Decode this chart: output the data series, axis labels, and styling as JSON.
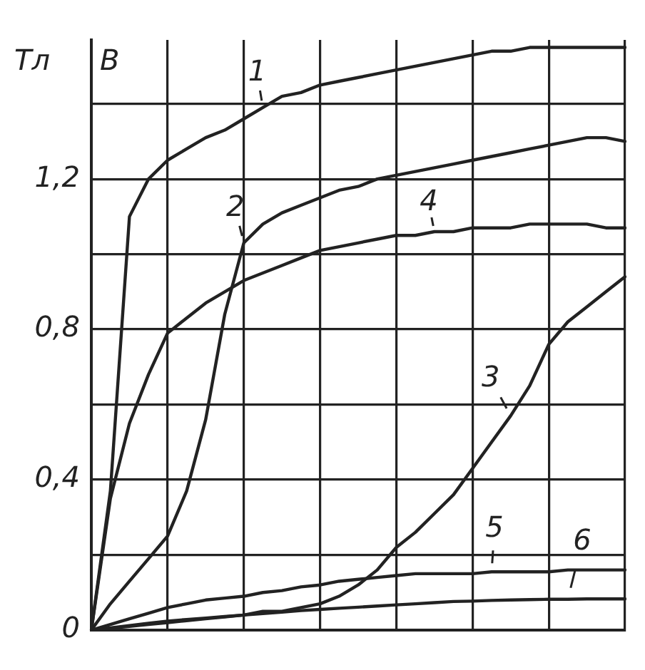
{
  "chart_data": {
    "type": "line",
    "ylabel": "Тл",
    "annotations": [
      "B"
    ],
    "categories": [
      null,
      null,
      null,
      null,
      null,
      null,
      null,
      null,
      null,
      null,
      null,
      null,
      null,
      null,
      null,
      null,
      null,
      null,
      null,
      null,
      null,
      null,
      null,
      null,
      null,
      null,
      null,
      null,
      null
    ],
    "ylim": [
      0,
      1.57
    ],
    "yticks": [
      {
        "value": 0,
        "label": "0"
      },
      {
        "value": 0.2,
        "label": null
      },
      {
        "value": 0.4,
        "label": "0,4"
      },
      {
        "value": 0.6,
        "label": null
      },
      {
        "value": 0.8,
        "label": "0,8"
      },
      {
        "value": 1,
        "label": null
      },
      {
        "value": 1.2,
        "label": "1,2"
      },
      {
        "value": 1.4,
        "label": null
      }
    ],
    "tick_labels": "y",
    "grid": true,
    "legend": false,
    "marker": "none",
    "line_style": "solid",
    "series": [
      {
        "name": "1",
        "color": "#222222",
        "values": [
          0,
          0.37,
          1.1,
          1.2,
          1.25,
          1.28,
          1.31,
          1.33,
          1.36,
          1.39,
          1.42,
          1.43,
          1.45,
          1.46,
          1.47,
          1.48,
          1.49,
          1.5,
          1.51,
          1.52,
          1.53,
          1.54,
          1.54,
          1.55,
          1.55,
          1.55,
          1.55,
          1.55,
          1.55
        ]
      },
      {
        "name": "2",
        "color": "#222222",
        "values": [
          0,
          0.07,
          0.13,
          0.19,
          0.25,
          0.37,
          0.56,
          0.84,
          1.03,
          1.08,
          1.11,
          1.13,
          1.15,
          1.17,
          1.18,
          1.2,
          1.21,
          1.22,
          1.23,
          1.24,
          1.25,
          1.26,
          1.27,
          1.28,
          1.29,
          1.3,
          1.31,
          1.31,
          1.3
        ]
      },
      {
        "name": "3",
        "color": "#222222",
        "values": [
          0,
          0.005,
          0.01,
          0.015,
          0.02,
          0.025,
          0.03,
          0.035,
          0.04,
          0.05,
          0.05,
          0.06,
          0.07,
          0.09,
          0.12,
          0.16,
          0.22,
          0.26,
          0.31,
          0.36,
          0.43,
          0.5,
          0.57,
          0.65,
          0.76,
          0.82,
          0.86,
          0.9,
          0.94
        ]
      },
      {
        "name": "4",
        "color": "#222222",
        "values": [
          0,
          0.35,
          0.55,
          0.68,
          0.79,
          0.83,
          0.87,
          0.9,
          0.93,
          0.95,
          0.97,
          0.99,
          1.01,
          1.02,
          1.03,
          1.04,
          1.05,
          1.05,
          1.06,
          1.06,
          1.07,
          1.07,
          1.07,
          1.08,
          1.08,
          1.08,
          1.08,
          1.07,
          1.07
        ]
      },
      {
        "name": "5",
        "color": "#222222",
        "values": [
          0,
          0.015,
          0.03,
          0.045,
          0.06,
          0.07,
          0.08,
          0.085,
          0.09,
          0.1,
          0.105,
          0.115,
          0.12,
          0.13,
          0.135,
          0.14,
          0.145,
          0.15,
          0.15,
          0.15,
          0.15,
          0.155,
          0.155,
          0.155,
          0.155,
          0.16,
          0.16,
          0.16,
          0.16
        ]
      },
      {
        "name": "6",
        "color": "#222222",
        "values": [
          0,
          0.006,
          0.012,
          0.018,
          0.024,
          0.028,
          0.032,
          0.036,
          0.04,
          0.044,
          0.048,
          0.052,
          0.055,
          0.058,
          0.061,
          0.064,
          0.067,
          0.07,
          0.073,
          0.076,
          0.077,
          0.079,
          0.08,
          0.081,
          0.082,
          0.082,
          0.083,
          0.083,
          0.083
        ]
      }
    ]
  }
}
